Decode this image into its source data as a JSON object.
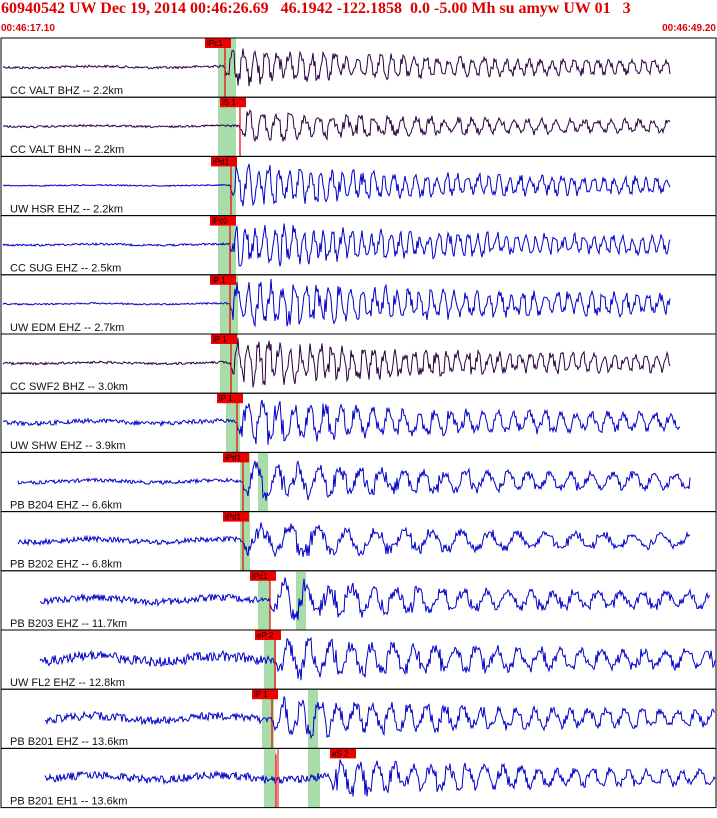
{
  "header": {
    "title": "60940542 UW Dec 19, 2014 00:46:26.69   46.1942 -122.1858  0.0 -5.00 Mh su amyw UW 01   3",
    "start_time": "00:46:17.10",
    "end_time": "00:46:49.20"
  },
  "colors": {
    "header_text": "#e00000",
    "trace_blue": "#0000cc",
    "trace_purple": "#2a0040",
    "pick_flag": "#ee0000",
    "pick_band": "#a8dca8",
    "border": "#000000"
  },
  "channels": [
    {
      "label": "CC VALT BHZ -- 2.2km",
      "color": "purple",
      "picks": [
        {
          "text": "iPc1"
        }
      ]
    },
    {
      "label": "CC VALT BHN -- 2.2km",
      "color": "purple",
      "picks": [
        {
          "text": "iS 1"
        }
      ]
    },
    {
      "label": "UW HSR EHZ -- 2.2km",
      "color": "blue",
      "picks": [
        {
          "text": "iPd1"
        }
      ]
    },
    {
      "label": "CC SUG EHZ -- 2.5km",
      "color": "blue",
      "picks": [
        {
          "text": "iPc0"
        }
      ]
    },
    {
      "label": "UW EDM EHZ -- 2.7km",
      "color": "blue",
      "picks": [
        {
          "text": "iP 1"
        }
      ]
    },
    {
      "label": "CC SWF2 BHZ -- 3.0km",
      "color": "purple",
      "picks": [
        {
          "text": "iP 1"
        }
      ]
    },
    {
      "label": "UW SHW EHZ -- 3.9km",
      "color": "blue",
      "picks": [
        {
          "text": "iP 1"
        }
      ]
    },
    {
      "label": "PB B204 EHZ -- 6.6km",
      "color": "blue",
      "picks": [
        {
          "text": "iPd1"
        }
      ]
    },
    {
      "label": "PB B202 EHZ -- 6.8km",
      "color": "blue",
      "picks": [
        {
          "text": "iPd1"
        }
      ]
    },
    {
      "label": "PB B203 EHZ -- 11.7km",
      "color": "blue",
      "picks": [
        {
          "text": "iPc1"
        }
      ]
    },
    {
      "label": "UW FL2 EHZ -- 12.8km",
      "color": "blue",
      "picks": [
        {
          "text": "eP 2"
        }
      ]
    },
    {
      "label": "PB B201 EHZ -- 13.6km",
      "color": "blue",
      "picks": [
        {
          "text": "iP 1"
        }
      ]
    },
    {
      "label": "PB B201 EH1 -- 13.6km",
      "color": "blue",
      "picks": [
        {
          "text": "eS 2"
        }
      ]
    }
  ]
}
